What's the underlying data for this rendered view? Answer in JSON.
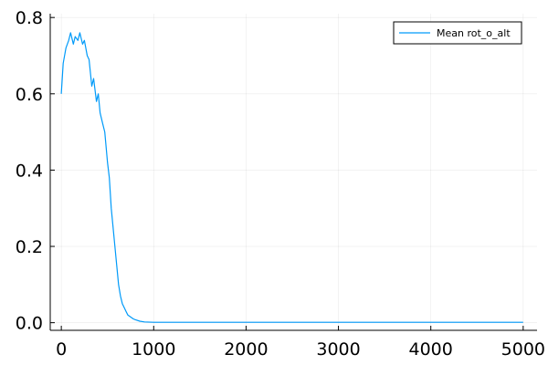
{
  "chart_data": {
    "type": "line",
    "title": "",
    "xlabel": "",
    "ylabel": "",
    "xlim": [
      -120,
      5150
    ],
    "ylim": [
      -0.02,
      0.81
    ],
    "xticks": [
      0,
      1000,
      2000,
      3000,
      4000,
      5000
    ],
    "xtick_labels": [
      "0",
      "1000",
      "2000",
      "3000",
      "4000",
      "5000"
    ],
    "yticks": [
      0.0,
      0.2,
      0.4,
      0.6,
      0.8
    ],
    "ytick_labels": [
      "0.0",
      "0.2",
      "0.4",
      "0.6",
      "0.8"
    ],
    "grid": true,
    "legend": {
      "position": "top-right",
      "entries": [
        "Mean rot_o_alt"
      ]
    },
    "series": [
      {
        "name": "Mean rot_o_alt",
        "color": "#009af9",
        "x": [
          0,
          20,
          50,
          80,
          100,
          130,
          150,
          180,
          200,
          230,
          250,
          280,
          300,
          330,
          350,
          380,
          400,
          420,
          450,
          470,
          500,
          520,
          540,
          560,
          580,
          600,
          620,
          640,
          660,
          680,
          700,
          720,
          750,
          780,
          800,
          850,
          900,
          1000,
          1500,
          2000,
          2500,
          3000,
          3500,
          4000,
          4500,
          5000
        ],
        "y": [
          0.6,
          0.68,
          0.72,
          0.74,
          0.76,
          0.73,
          0.75,
          0.74,
          0.76,
          0.73,
          0.74,
          0.7,
          0.69,
          0.62,
          0.64,
          0.58,
          0.6,
          0.55,
          0.52,
          0.5,
          0.42,
          0.38,
          0.3,
          0.25,
          0.2,
          0.15,
          0.1,
          0.07,
          0.05,
          0.04,
          0.03,
          0.02,
          0.015,
          0.01,
          0.008,
          0.004,
          0.002,
          0.001,
          0.001,
          0.001,
          0.001,
          0.001,
          0.001,
          0.001,
          0.001,
          0.001
        ]
      }
    ]
  }
}
